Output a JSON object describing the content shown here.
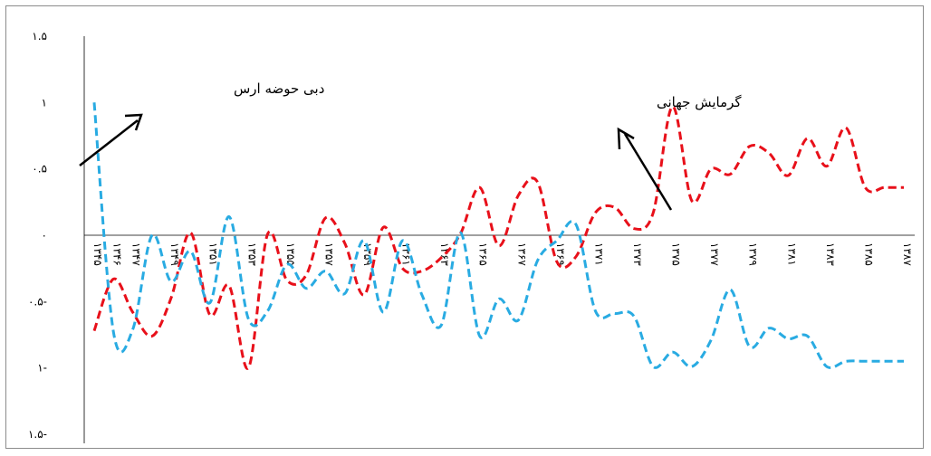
{
  "chart_data": {
    "type": "line",
    "title": "",
    "xlabel": "",
    "ylabel": "",
    "ylim": [
      -1.5,
      1.5
    ],
    "y_ticks": [
      {
        "value": 1.5,
        "label": "۱.۵"
      },
      {
        "value": 1,
        "label": "۱"
      },
      {
        "value": 0.5,
        "label": "۰.۵"
      },
      {
        "value": 0,
        "label": "۰"
      },
      {
        "value": -0.5,
        "label": "۰.۵-"
      },
      {
        "value": -1,
        "label": "۱-"
      },
      {
        "value": -1.5,
        "label": "۱.۵-"
      }
    ],
    "x": [
      1966,
      1967,
      1968,
      1969,
      1970,
      1971,
      1972,
      1973,
      1974,
      1975,
      1976,
      1977,
      1978,
      1979,
      1980,
      1981,
      1982,
      1983,
      1984,
      1985,
      1986,
      1987,
      1988,
      1989,
      1990,
      1991,
      1992,
      1993,
      1994,
      1995,
      1996,
      1997,
      1998,
      1999,
      2000,
      2001,
      2002,
      2003,
      2004,
      2005,
      2006,
      2007,
      2008
    ],
    "x_tick_labels": [
      {
        "x": 1966,
        "label": "۱۳۴۵"
      },
      {
        "x": 1967,
        "label": "۱۳۴۶"
      },
      {
        "x": 1968,
        "label": "۱۳۴۷"
      },
      {
        "x": 1970,
        "label": "۱۳۴۹"
      },
      {
        "x": 1972,
        "label": "۱۳۵۱"
      },
      {
        "x": 1974,
        "label": "۱۳۵۳"
      },
      {
        "x": 1976,
        "label": "۱۳۵۵"
      },
      {
        "x": 1978,
        "label": "۱۳۵۷"
      },
      {
        "x": 1980,
        "label": "۱۳۵۹"
      },
      {
        "x": 1982,
        "label": "۱۳۶۱"
      },
      {
        "x": 1984,
        "label": "۱۳۶۳"
      },
      {
        "x": 1986,
        "label": "۱۳۶۵"
      },
      {
        "x": 1988,
        "label": "۱۳۶۷"
      },
      {
        "x": 1990,
        "label": "۱۳۶۹"
      },
      {
        "x": 1992,
        "label": "۱۳۷۱"
      },
      {
        "x": 1994,
        "label": "۱۳۷۳"
      },
      {
        "x": 1996,
        "label": "۱۳۷۵"
      },
      {
        "x": 1998,
        "label": "۱۳۷۷"
      },
      {
        "x": 2000,
        "label": "۱۳۷۹"
      },
      {
        "x": 2002,
        "label": "۱۳۸۱"
      },
      {
        "x": 2004,
        "label": "۱۳۸۳"
      },
      {
        "x": 2006,
        "label": "۱۳۸۵"
      },
      {
        "x": 2008,
        "label": "۱۳۸۷"
      }
    ],
    "series": [
      {
        "color": "#e8101a",
        "values": [
          -0.72,
          -0.33,
          -0.58,
          -0.76,
          -0.47,
          0.02,
          -0.6,
          -0.38,
          -1.0,
          0.01,
          -0.34,
          -0.3,
          0.13,
          -0.06,
          -0.45,
          0.06,
          -0.25,
          -0.27,
          -0.17,
          0.01,
          0.36,
          -0.08,
          0.3,
          0.4,
          -0.2,
          -0.16,
          0.17,
          0.21,
          0.05,
          0.17,
          0.97,
          0.26,
          0.5,
          0.46,
          0.67,
          0.62,
          0.45,
          0.73,
          0.52,
          0.81,
          0.36,
          0.36,
          0.36
        ]
      },
      {
        "color": "#29abe2",
        "values": [
          1.0,
          -0.73,
          -0.71,
          0.0,
          -0.35,
          -0.12,
          -0.51,
          0.14,
          -0.63,
          -0.57,
          -0.22,
          -0.4,
          -0.27,
          -0.44,
          -0.04,
          -0.58,
          -0.04,
          -0.45,
          -0.68,
          0.02,
          -0.76,
          -0.48,
          -0.64,
          -0.19,
          -0.04,
          0.08,
          -0.57,
          -0.59,
          -0.61,
          -0.99,
          -0.88,
          -0.99,
          -0.79,
          -0.41,
          -0.84,
          -0.7,
          -0.78,
          -0.76,
          -0.99,
          -0.95,
          -0.95,
          -0.95,
          -0.95
        ]
      }
    ],
    "annotations": [
      {
        "text": "دبی حوضه ارس",
        "series_index": 1
      },
      {
        "text": "گرمایش جهانی",
        "series_index": 0
      }
    ],
    "grid": false,
    "legend": "none"
  }
}
